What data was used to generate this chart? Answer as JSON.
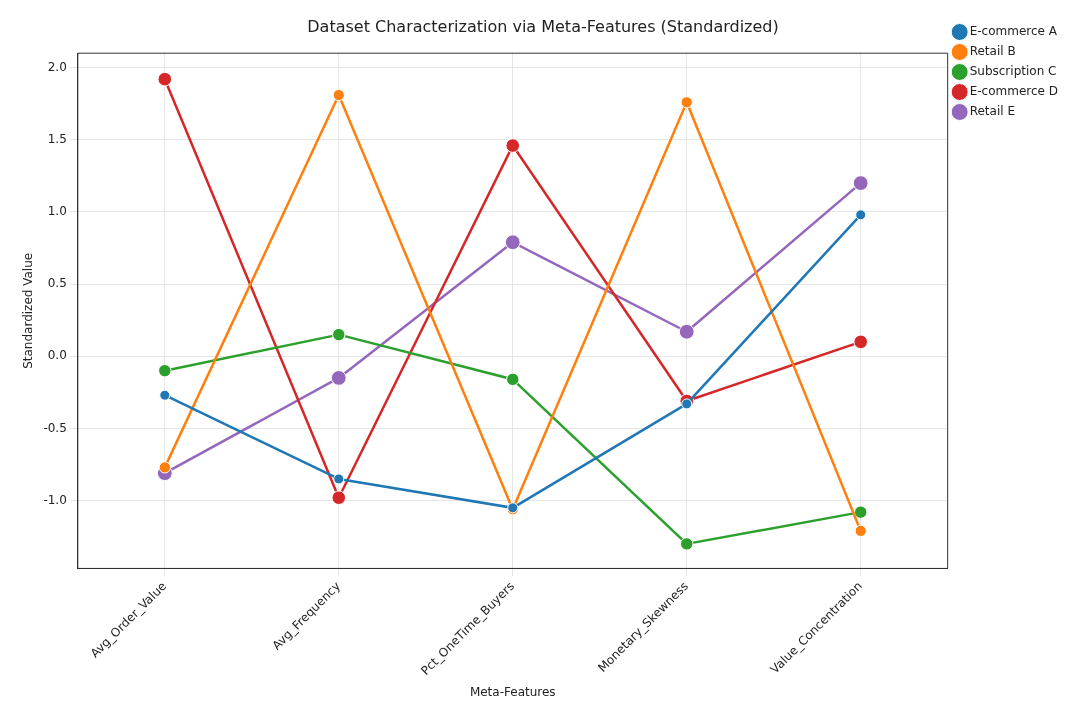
{
  "chart_data": {
    "type": "line",
    "title": "Dataset Characterization via Meta-Features (Standardized)",
    "xlabel": "Meta-Features",
    "ylabel": "Standardized Value",
    "categories": [
      "Avg_Order_Value",
      "Avg_Frequency",
      "Pct_OneTime_Buyers",
      "Monetary_Skewness",
      "Value_Concentration"
    ],
    "series": [
      {
        "name": "E-commerce A",
        "color": "#1f77b4",
        "values": [
          -0.27,
          -0.85,
          -1.05,
          -0.33,
          0.98
        ]
      },
      {
        "name": "Retail B",
        "color": "#ff7f0e",
        "values": [
          -0.77,
          1.81,
          -1.06,
          1.76,
          -1.21
        ]
      },
      {
        "name": "Subscription C",
        "color": "#2ca02c",
        "values": [
          -0.1,
          0.15,
          -0.16,
          -1.3,
          -1.08
        ]
      },
      {
        "name": "E-commerce D",
        "color": "#d62728",
        "values": [
          1.92,
          -0.98,
          1.46,
          -0.31,
          0.1
        ]
      },
      {
        "name": "Retail E",
        "color": "#9467bd",
        "values": [
          -0.81,
          -0.15,
          0.79,
          0.17,
          1.2
        ]
      }
    ],
    "ylim": [
      -1.47,
      2.1
    ],
    "yticks": [
      {
        "value": -1,
        "label": "-1.0"
      },
      {
        "value": -0.5,
        "label": "-0.5"
      },
      {
        "value": 0,
        "label": "0.0"
      },
      {
        "value": 0.5,
        "label": "0.5"
      },
      {
        "value": 1,
        "label": "1.0"
      },
      {
        "value": 1.5,
        "label": "1.5"
      },
      {
        "value": 2,
        "label": "2.0"
      }
    ],
    "grid": true,
    "legend": "top right",
    "marker": "circle",
    "line_style": "solid"
  }
}
